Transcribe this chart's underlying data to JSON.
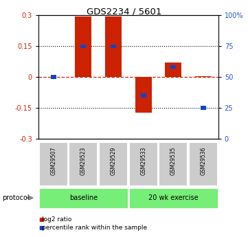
{
  "title": "GDS2234 / 5601",
  "samples": [
    "GSM29507",
    "GSM29523",
    "GSM29529",
    "GSM29533",
    "GSM29535",
    "GSM29536"
  ],
  "log2_ratio": [
    0.0,
    0.295,
    0.295,
    -0.175,
    0.07,
    0.005
  ],
  "percentile_rank": [
    50,
    75,
    75,
    35,
    58,
    25
  ],
  "baseline_count": 3,
  "exercise_count": 3,
  "ylim": [
    -0.3,
    0.3
  ],
  "yticks_left": [
    -0.3,
    -0.15,
    0.0,
    0.15,
    0.3
  ],
  "yticks_right": [
    0,
    25,
    50,
    75,
    100
  ],
  "bar_color_red": "#cc2200",
  "bar_color_blue": "#1144cc",
  "dashed_line_color": "#cc2200",
  "tick_color_left": "#cc2200",
  "tick_color_right": "#2255cc",
  "bar_width": 0.55,
  "pct_bar_width": 0.18,
  "pct_bar_height": 0.018,
  "sample_box_color": "#cccccc",
  "proto_color": "#77ee77",
  "legend_red": "#cc2200",
  "legend_blue": "#1144cc"
}
